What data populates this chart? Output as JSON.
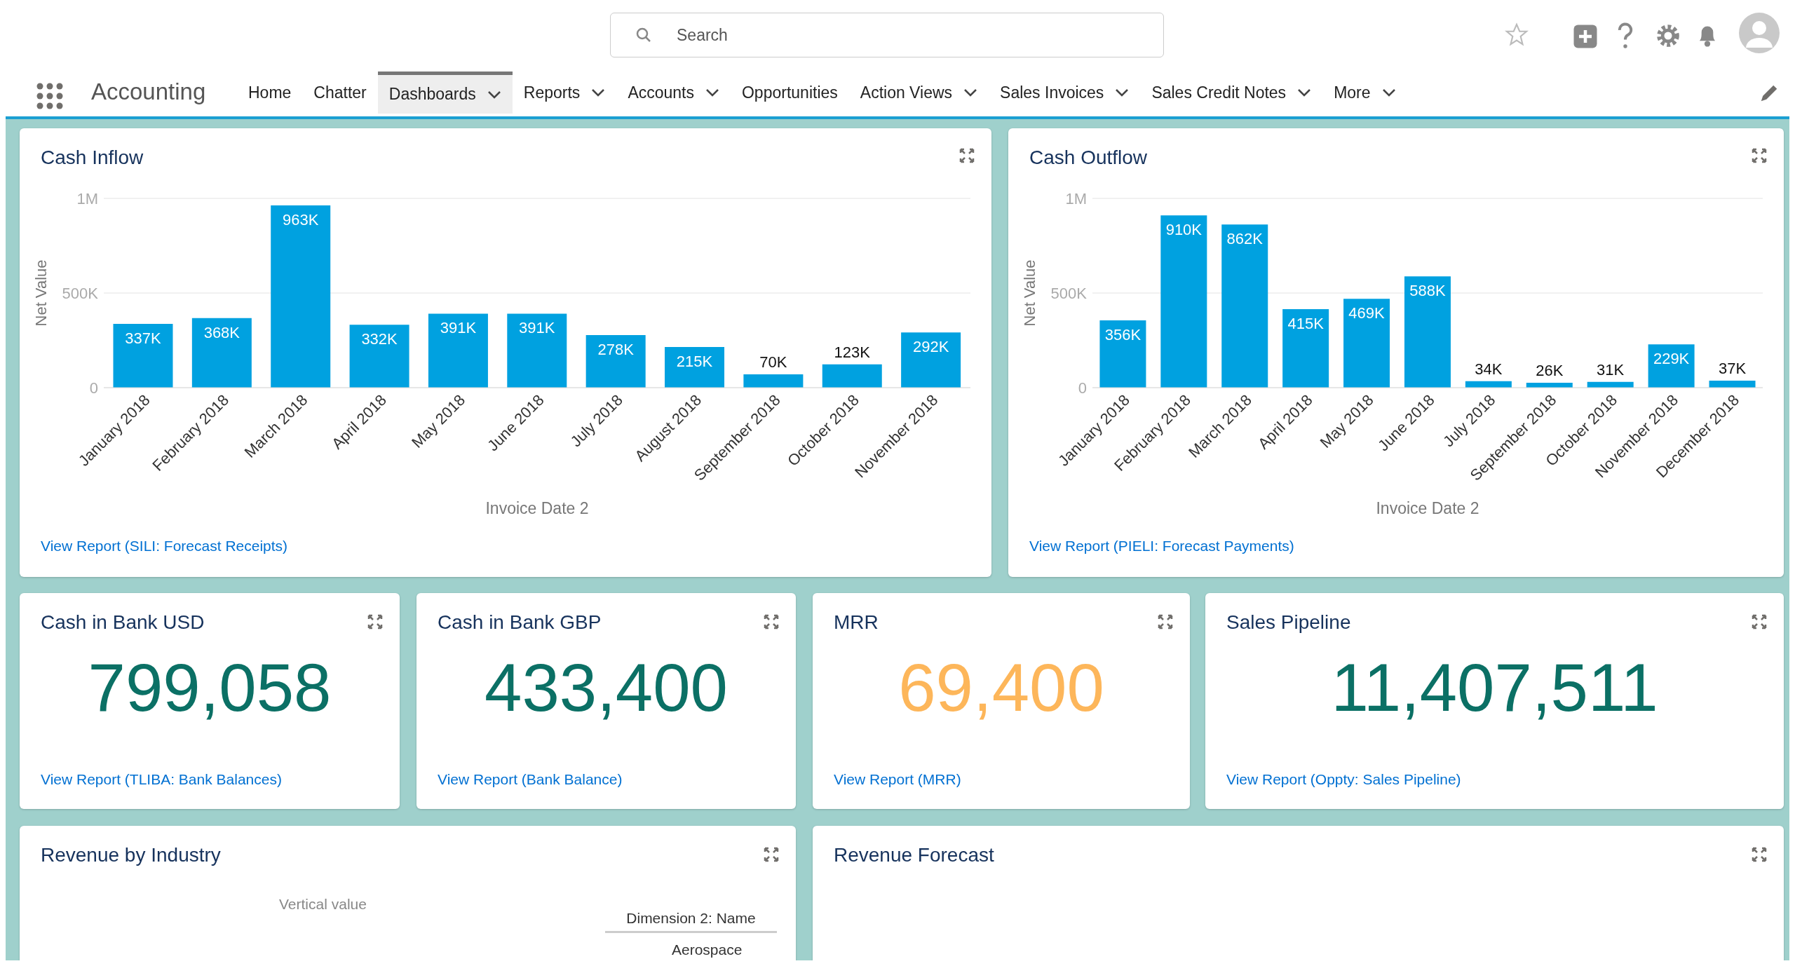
{
  "chart_data": [
    {
      "type": "other",
      "title": "Accounting",
      "annotations": [
        "Search",
        "Home",
        "Chatter",
        "Dashboards",
        "Reports",
        "Accounts",
        "Opportunities",
        "Action Views",
        "Sales Invoices",
        "Sales Credit Notes",
        "More"
      ]
    },
    {
      "type": "bar",
      "title": "Cash Inflow",
      "xlabel": "Invoice Date 2",
      "ylabel": "Net Value",
      "categories": [
        "January 2018",
        "February 2018",
        "March 2018",
        "April 2018",
        "May 2018",
        "June 2018",
        "July 2018",
        "August 2018",
        "September 2018",
        "October 2018",
        "November 2018"
      ],
      "values": [
        337000,
        368000,
        963000,
        332000,
        391000,
        391000,
        278000,
        215000,
        70000,
        123000,
        292000
      ],
      "value_labels": [
        "337K",
        "368K",
        "963K",
        "332K",
        "391K",
        "391K",
        "278K",
        "215K",
        "70K",
        "123K",
        "292K"
      ],
      "color": "#00a1e0",
      "ylim": [
        0,
        1000000
      ],
      "yticks": [
        {
          "value": 0,
          "label": "0"
        },
        {
          "value": 500000,
          "label": "500K"
        },
        {
          "value": 1000000,
          "label": "1M"
        }
      ],
      "grid": "y",
      "annotations": [
        "View Report (SILI: Forecast Receipts)"
      ]
    },
    {
      "type": "bar",
      "title": "Cash Outflow",
      "xlabel": "Invoice Date 2",
      "ylabel": "Net Value",
      "categories": [
        "January 2018",
        "February 2018",
        "March 2018",
        "April 2018",
        "May 2018",
        "June 2018",
        "July 2018",
        "September 2018",
        "October 2018",
        "November 2018",
        "December 2018"
      ],
      "values": [
        356000,
        910000,
        862000,
        415000,
        469000,
        588000,
        34000,
        26000,
        31000,
        229000,
        37000
      ],
      "value_labels": [
        "356K",
        "910K",
        "862K",
        "415K",
        "469K",
        "588K",
        "34K",
        "26K",
        "31K",
        "229K",
        "37K"
      ],
      "color": "#00a1e0",
      "ylim": [
        0,
        1000000
      ],
      "yticks": [
        {
          "value": 0,
          "label": "0"
        },
        {
          "value": 500000,
          "label": "500K"
        },
        {
          "value": 1000000,
          "label": "1M"
        }
      ],
      "grid": "y",
      "annotations": [
        "View Report (PIELI: Forecast Payments)"
      ]
    },
    {
      "type": "other",
      "title": "Cash in Bank USD",
      "color": "#0b7065",
      "annotations": [
        "799,058",
        "View Report (TLIBA: Bank Balances)"
      ]
    },
    {
      "type": "other",
      "title": "Cash in Bank GBP",
      "color": "#0b7065",
      "annotations": [
        "433,400",
        "View Report (Bank Balance)"
      ]
    },
    {
      "type": "other",
      "title": "MRR",
      "color": "#fdb65a",
      "annotations": [
        "69,400",
        "View Report (MRR)"
      ]
    },
    {
      "type": "other",
      "title": "Sales Pipeline",
      "color": "#0b7065",
      "annotations": [
        "11,407,511",
        "View Report (Oppty: Sales Pipeline)"
      ]
    },
    {
      "type": "other",
      "title": "Revenue by Industry",
      "annotations": [
        "Vertical value",
        "Dimension 2: Name",
        "Aerospace"
      ]
    },
    {
      "type": "other",
      "title": "Revenue Forecast"
    }
  ]
}
